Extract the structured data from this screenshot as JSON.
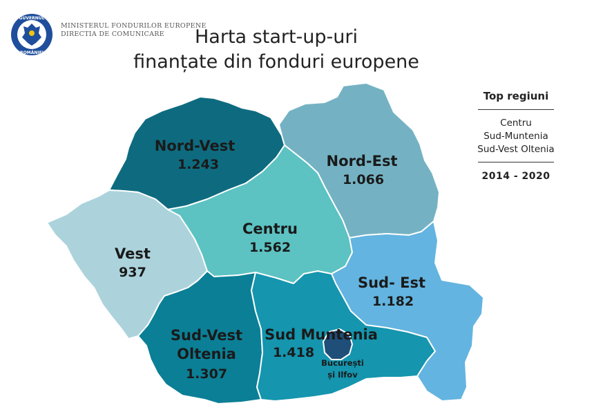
{
  "header": {
    "ministry_line1": "Ministerul Fondurilor Europene",
    "ministry_line2": "Directia de comunicare",
    "logo_text_top": "GUVERNUL",
    "logo_text_bottom": "ROMÂNIEI"
  },
  "title": {
    "line1": "Harta start-up-uri",
    "line2": "finanțate din fonduri europene"
  },
  "sidebar": {
    "heading": "Top regiuni",
    "top_regions": [
      "Centru",
      "Sud-Muntenia",
      "Sud-Vest Oltenia"
    ],
    "period": "2014 - 2020"
  },
  "regions": [
    {
      "id": "nord-vest",
      "name": "Nord-Vest",
      "value": "1.243",
      "color": "#0e6b7f"
    },
    {
      "id": "nord-est",
      "name": "Nord-Est",
      "value": "1.066",
      "color": "#74b2c3"
    },
    {
      "id": "vest",
      "name": "Vest",
      "value": "937",
      "color": "#acd3dc"
    },
    {
      "id": "centru",
      "name": "Centru",
      "value": "1.562",
      "color": "#5cc2c2"
    },
    {
      "id": "sud-est",
      "name": "Sud- Est",
      "value": "1.182",
      "color": "#63b4e0"
    },
    {
      "id": "sud-vest",
      "name_line1": "Sud-Vest",
      "name_line2": "Oltenia",
      "value": "1.307",
      "color": "#0b7f96"
    },
    {
      "id": "sud-muntenia",
      "name": "Sud Muntenia",
      "value": "1.418",
      "color": "#1595ae"
    },
    {
      "id": "bucuresti",
      "name_line1": "București",
      "name_line2": "și Ilfov",
      "color": "#1f4e79"
    }
  ]
}
